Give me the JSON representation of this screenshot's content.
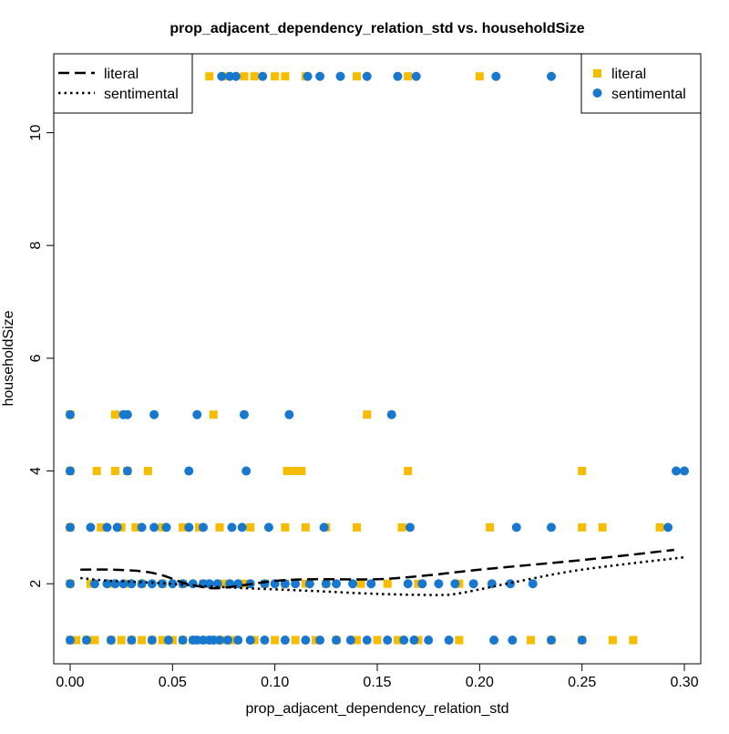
{
  "chart_data": {
    "type": "scatter",
    "title": "prop_adjacent_dependency_relation_std vs. householdSize",
    "xlabel": "prop_adjacent_dependency_relation_std",
    "ylabel": "householdSize",
    "xlim": [
      -0.008,
      0.308
    ],
    "ylim": [
      0.58,
      11.4
    ],
    "x_ticks": [
      0.0,
      0.05,
      0.1,
      0.15,
      0.2,
      0.25,
      0.3
    ],
    "x_tick_labels": [
      "0.00",
      "0.05",
      "0.10",
      "0.15",
      "0.20",
      "0.25",
      "0.30"
    ],
    "y_ticks": [
      2,
      4,
      6,
      8,
      10
    ],
    "y_tick_labels": [
      "2",
      "4",
      "6",
      "8",
      "10"
    ],
    "grid": false,
    "colors": {
      "literal": "#F5BC00",
      "sentimental": "#1878D0",
      "axis": "#000000"
    },
    "legend_lines": {
      "placement": "top-left",
      "items": [
        {
          "label": "literal",
          "style": "dashed"
        },
        {
          "label": "sentimental",
          "style": "dotted"
        }
      ]
    },
    "legend_points": {
      "placement": "top-right",
      "items": [
        {
          "label": "literal",
          "marker": "square"
        },
        {
          "label": "sentimental",
          "marker": "circle"
        }
      ]
    },
    "series": [
      {
        "name": "literal",
        "marker": "square",
        "x": [
          0.0,
          0.003,
          0.008,
          0.012,
          0.02,
          0.025,
          0.03,
          0.035,
          0.04,
          0.045,
          0.05,
          0.055,
          0.06,
          0.065,
          0.07,
          0.075,
          0.08,
          0.09,
          0.1,
          0.11,
          0.12,
          0.13,
          0.14,
          0.15,
          0.16,
          0.17,
          0.19,
          0.225,
          0.235,
          0.25,
          0.265,
          0.275,
          0.0,
          0.01,
          0.02,
          0.028,
          0.035,
          0.045,
          0.055,
          0.065,
          0.075,
          0.085,
          0.095,
          0.105,
          0.115,
          0.125,
          0.142,
          0.155,
          0.17,
          0.19,
          0.0,
          0.015,
          0.025,
          0.032,
          0.045,
          0.055,
          0.063,
          0.073,
          0.088,
          0.105,
          0.115,
          0.125,
          0.14,
          0.162,
          0.205,
          0.25,
          0.26,
          0.288,
          0.0,
          0.013,
          0.022,
          0.028,
          0.038,
          0.106,
          0.11,
          0.113,
          0.165,
          0.25,
          0.0,
          0.022,
          0.07,
          0.145,
          0.068,
          0.075,
          0.085,
          0.09,
          0.1,
          0.105,
          0.115,
          0.14,
          0.165,
          0.2
        ],
        "y": [
          1,
          1,
          1,
          1,
          1,
          1,
          1,
          1,
          1,
          1,
          1,
          1,
          1,
          1,
          1,
          1,
          1,
          1,
          1,
          1,
          1,
          1,
          1,
          1,
          1,
          1,
          1,
          1,
          1,
          1,
          1,
          1,
          2,
          2,
          2,
          2,
          2,
          2,
          2,
          2,
          2,
          2,
          2,
          2,
          2,
          2,
          2,
          2,
          2,
          2,
          3,
          3,
          3,
          3,
          3,
          3,
          3,
          3,
          3,
          3,
          3,
          3,
          3,
          3,
          3,
          3,
          3,
          3,
          4,
          4,
          4,
          4,
          4,
          4,
          4,
          4,
          4,
          4,
          5,
          5,
          5,
          5,
          11,
          11,
          11,
          11,
          11,
          11,
          11,
          11,
          11,
          11
        ]
      },
      {
        "name": "sentimental",
        "marker": "circle",
        "x": [
          0.0,
          0.008,
          0.02,
          0.03,
          0.04,
          0.048,
          0.055,
          0.06,
          0.062,
          0.065,
          0.068,
          0.07,
          0.073,
          0.077,
          0.082,
          0.088,
          0.095,
          0.105,
          0.115,
          0.122,
          0.13,
          0.137,
          0.145,
          0.155,
          0.163,
          0.168,
          0.175,
          0.185,
          0.207,
          0.216,
          0.235,
          0.25,
          0.0,
          0.012,
          0.018,
          0.022,
          0.026,
          0.03,
          0.035,
          0.04,
          0.045,
          0.05,
          0.055,
          0.06,
          0.065,
          0.068,
          0.072,
          0.078,
          0.082,
          0.088,
          0.095,
          0.1,
          0.105,
          0.11,
          0.117,
          0.125,
          0.13,
          0.138,
          0.147,
          0.165,
          0.172,
          0.18,
          0.188,
          0.197,
          0.206,
          0.215,
          0.226,
          0.0,
          0.01,
          0.018,
          0.023,
          0.035,
          0.041,
          0.047,
          0.058,
          0.065,
          0.079,
          0.084,
          0.097,
          0.124,
          0.166,
          0.218,
          0.235,
          0.292,
          0.0,
          0.028,
          0.058,
          0.086,
          0.296,
          0.3,
          0.0,
          0.026,
          0.028,
          0.041,
          0.062,
          0.085,
          0.107,
          0.157,
          0.074,
          0.078,
          0.081,
          0.094,
          0.116,
          0.122,
          0.132,
          0.145,
          0.16,
          0.169,
          0.208,
          0.235
        ],
        "y": [
          1,
          1,
          1,
          1,
          1,
          1,
          1,
          1,
          1,
          1,
          1,
          1,
          1,
          1,
          1,
          1,
          1,
          1,
          1,
          1,
          1,
          1,
          1,
          1,
          1,
          1,
          1,
          1,
          1,
          1,
          1,
          1,
          2,
          2,
          2,
          2,
          2,
          2,
          2,
          2,
          2,
          2,
          2,
          2,
          2,
          2,
          2,
          2,
          2,
          2,
          2,
          2,
          2,
          2,
          2,
          2,
          2,
          2,
          2,
          2,
          2,
          2,
          2,
          2,
          2,
          2,
          2,
          3,
          3,
          3,
          3,
          3,
          3,
          3,
          3,
          3,
          3,
          3,
          3,
          3,
          3,
          3,
          3,
          3,
          4,
          4,
          4,
          4,
          4,
          4,
          5,
          5,
          5,
          5,
          5,
          5,
          5,
          5,
          11,
          11,
          11,
          11,
          11,
          11,
          11,
          11,
          11,
          11,
          11,
          11
        ]
      }
    ],
    "trend_lines": [
      {
        "name": "literal",
        "style": "dashed",
        "x": [
          0.005,
          0.02,
          0.035,
          0.045,
          0.055,
          0.062,
          0.07,
          0.08,
          0.1,
          0.12,
          0.15,
          0.175,
          0.2,
          0.25,
          0.295
        ],
        "y": [
          2.25,
          2.25,
          2.22,
          2.15,
          2.02,
          1.96,
          1.92,
          1.95,
          2.05,
          2.08,
          2.08,
          2.15,
          2.25,
          2.42,
          2.6
        ]
      },
      {
        "name": "sentimental",
        "style": "dotted",
        "x": [
          0.005,
          0.02,
          0.04,
          0.06,
          0.08,
          0.1,
          0.12,
          0.15,
          0.18,
          0.19,
          0.2,
          0.22,
          0.25,
          0.3
        ],
        "y": [
          2.1,
          2.05,
          2.02,
          1.97,
          1.93,
          1.9,
          1.87,
          1.82,
          1.8,
          1.83,
          1.9,
          2.05,
          2.25,
          2.47
        ]
      }
    ]
  }
}
